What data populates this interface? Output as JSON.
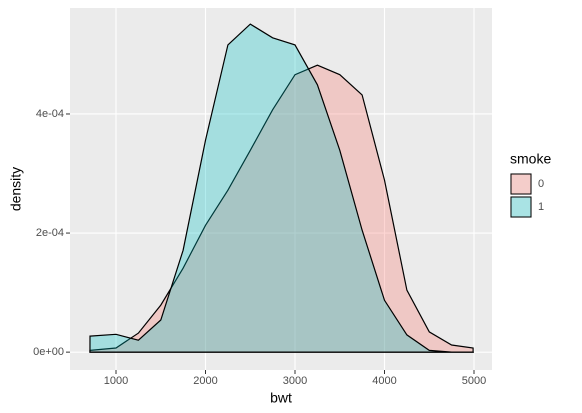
{
  "chart_data": {
    "type": "area",
    "x_label": "bwt",
    "y_label": "density",
    "legend_title": "smoke",
    "legend": "right",
    "x": [
      709,
      1000,
      1250,
      1500,
      1750,
      2000,
      2250,
      2500,
      2750,
      3000,
      3250,
      3500,
      3750,
      4000,
      4250,
      4500,
      4750,
      4990
    ],
    "series": [
      {
        "name": "0",
        "color": "#F8766D",
        "values": [
          3e-06,
          7e-06,
          3.2e-05,
          7.9e-05,
          0.000141,
          0.000213,
          0.000272,
          0.000339,
          0.000407,
          0.000466,
          0.000482,
          0.000466,
          0.000432,
          0.000289,
          0.000104,
          3.4e-05,
          1.2e-05,
          7e-06
        ]
      },
      {
        "name": "1",
        "color": "#00BFC4",
        "values": [
          2.7e-05,
          3e-05,
          2e-05,
          5.4e-05,
          0.000171,
          0.000356,
          0.000516,
          0.000551,
          0.000528,
          0.000516,
          0.000449,
          0.000339,
          0.000205,
          8.7e-05,
          2.9e-05,
          3e-06,
          0,
          0
        ]
      }
    ],
    "xlim": [
      486,
      5201
    ],
    "ylim": [
      -3e-05,
      0.000578
    ],
    "xticks": [
      1000,
      2000,
      3000,
      4000,
      5000
    ],
    "yticks": [
      {
        "value": 0,
        "label": "0e+00"
      },
      {
        "value": 0.0002,
        "label": "2e-04"
      },
      {
        "value": 0.0004,
        "label": "4e-04"
      }
    ],
    "grid": true
  }
}
